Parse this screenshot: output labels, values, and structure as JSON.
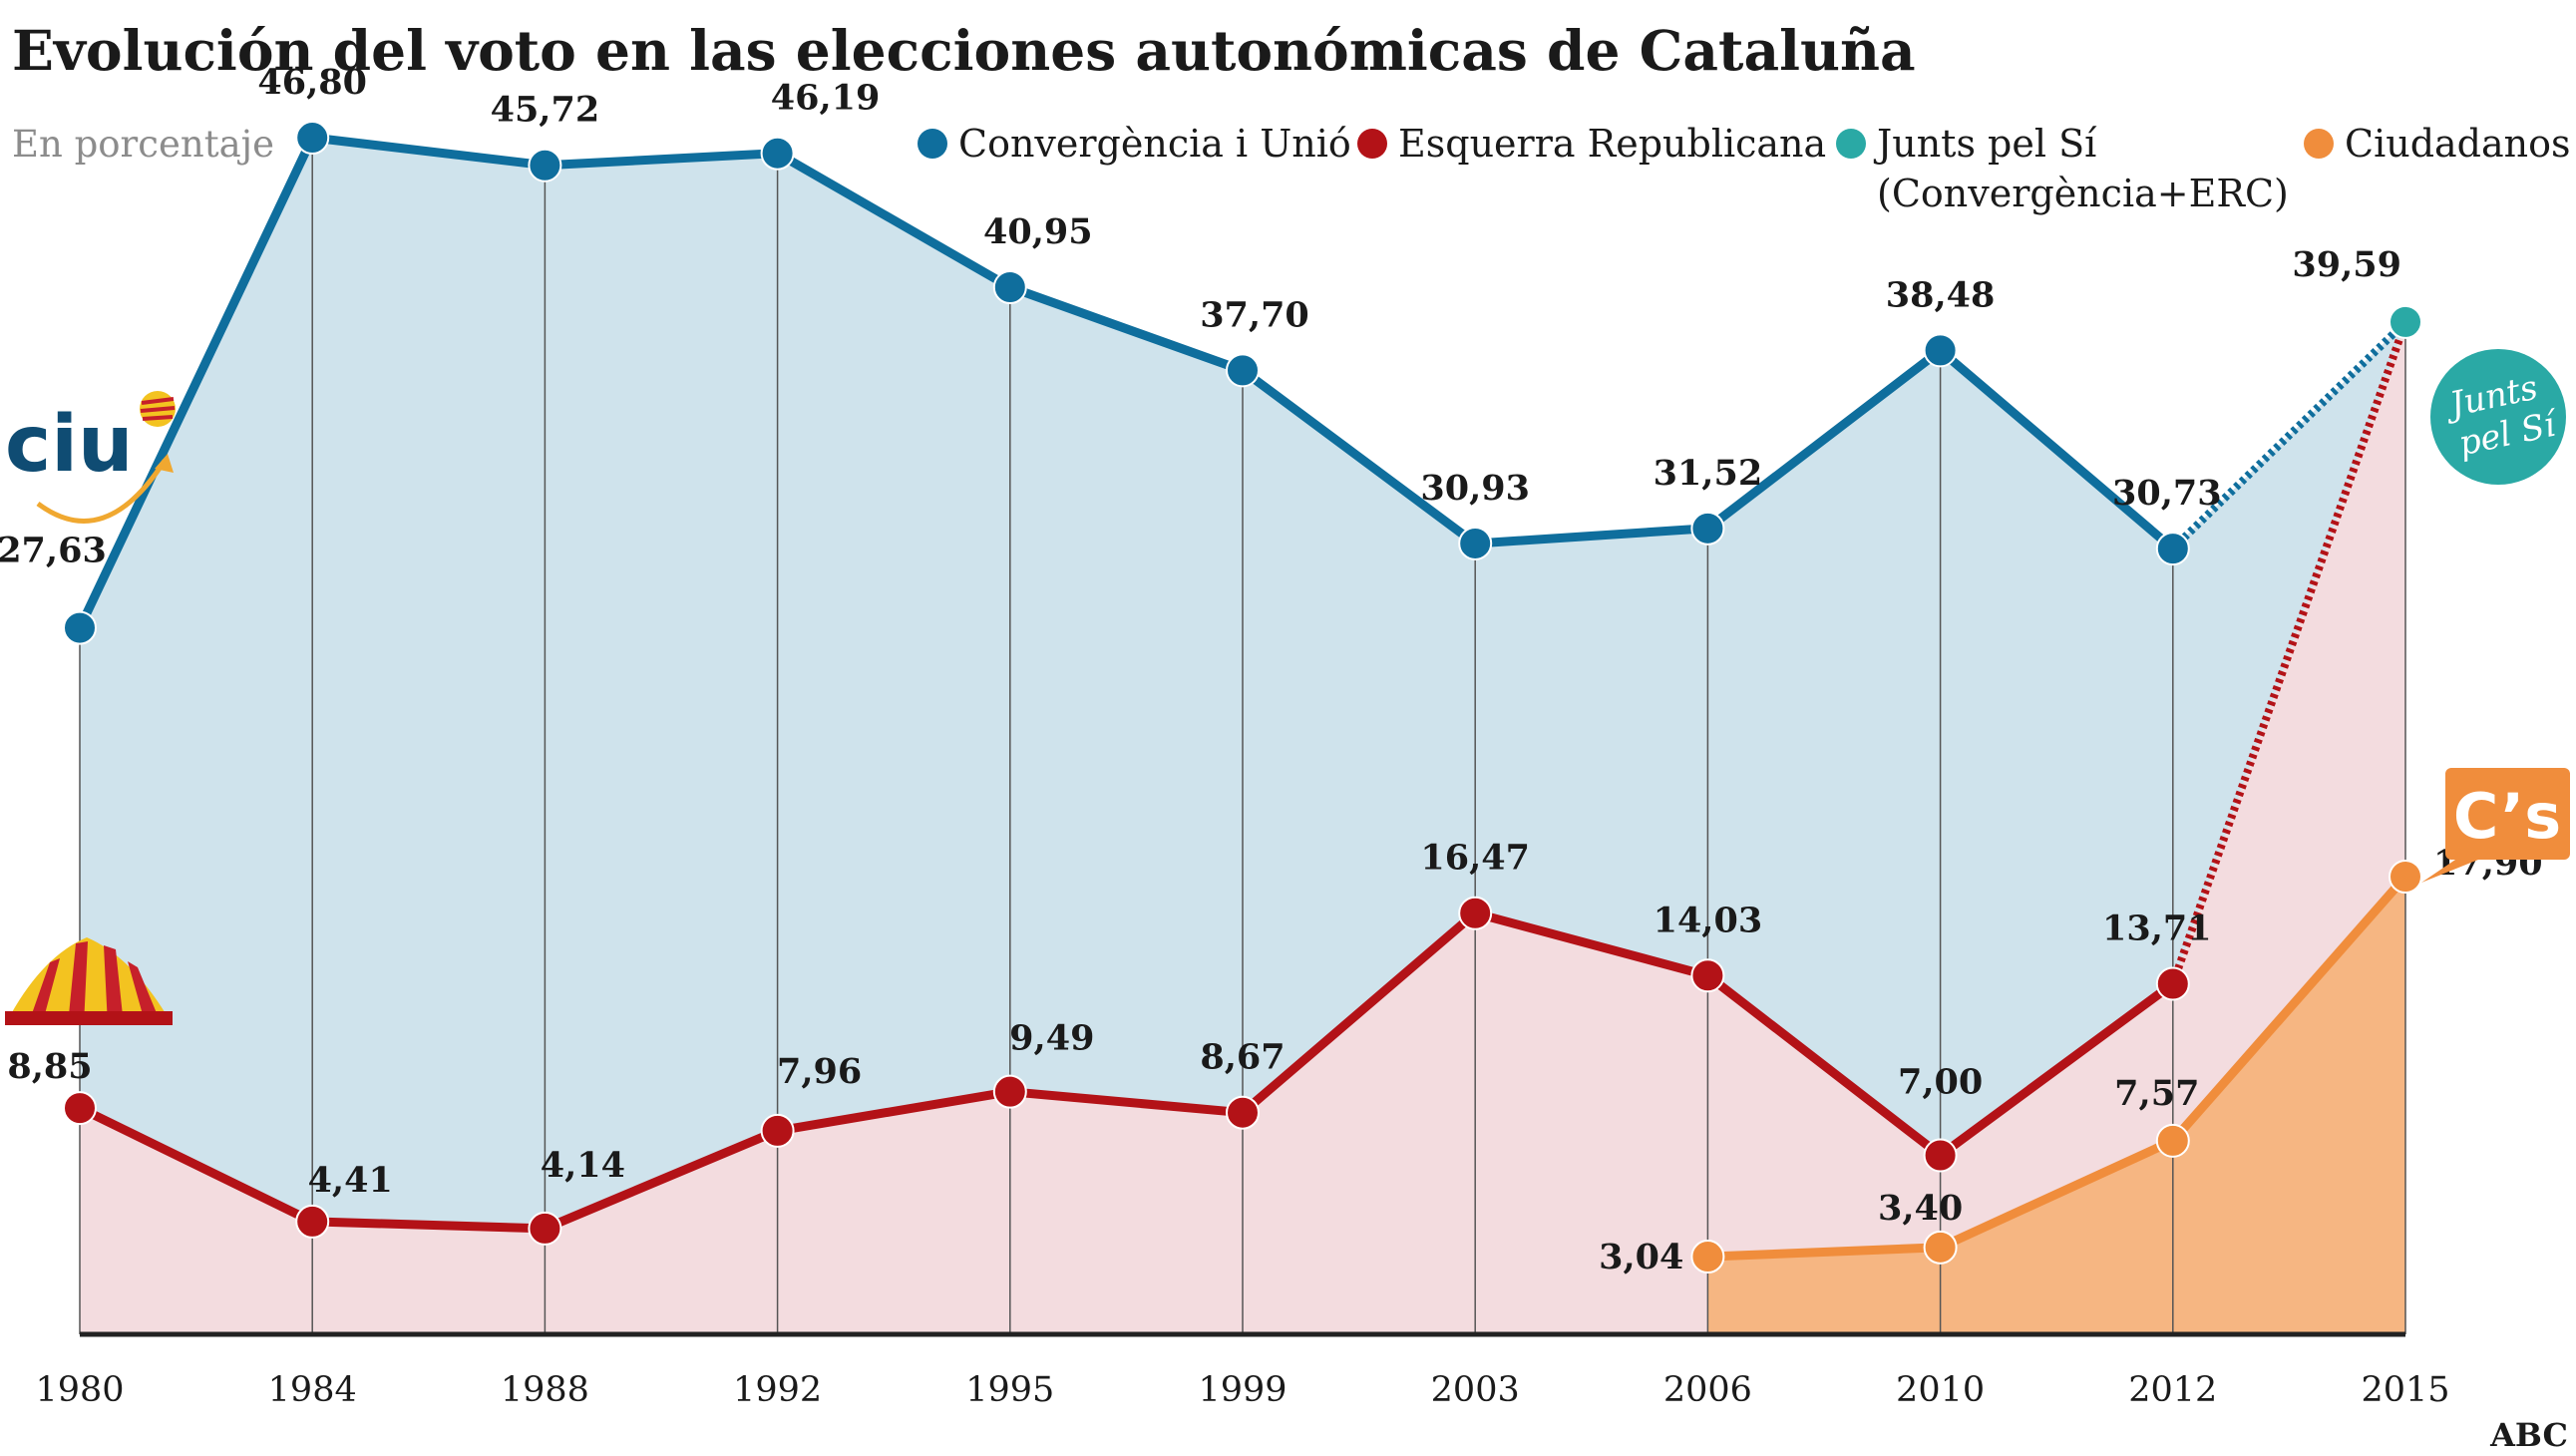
{
  "header": {
    "title": "Evolución del voto en las elecciones autonómicas de Cataluña",
    "subtitle": "En porcentaje",
    "source": "ABC"
  },
  "logos": {
    "ciu": "ciu",
    "junts": "Junts pel Sí",
    "cs": "C’s"
  },
  "colors": {
    "ciu": "#0f6e9d",
    "ciu_fill": "#cfe3ec",
    "erc": "#b31217",
    "erc_fill": "#f3dcdf",
    "junts": "#2aa9a5",
    "cs": "#f08d3c",
    "cs_fill": "#f6b682",
    "grid": "#555555",
    "axis": "#222222"
  },
  "chart_data": {
    "type": "line",
    "categories": [
      "1980",
      "1984",
      "1988",
      "1992",
      "1995",
      "1999",
      "2003",
      "2006",
      "2010",
      "2012",
      "2015"
    ],
    "ylim": [
      0,
      50
    ],
    "grid": "vertical lines at each year",
    "legend": "top-right",
    "title": "Evolución del voto en las elecciones autonómicas de Cataluña",
    "ylabel": "En porcentaje",
    "xlabel": "",
    "legend_entries": [
      {
        "key": "ciu",
        "label": "Convergència i Unió"
      },
      {
        "key": "erc",
        "label": "Esquerra Republicana"
      },
      {
        "key": "junts",
        "label": "Junts pel Sí",
        "label2": "(Convergència+ERC)"
      },
      {
        "key": "cs",
        "label": "Ciudadanos"
      }
    ],
    "series": [
      {
        "key": "ciu",
        "name": "Convergència i Unió",
        "x": [
          "1980",
          "1984",
          "1988",
          "1992",
          "1995",
          "1999",
          "2003",
          "2006",
          "2010",
          "2012"
        ],
        "values": [
          27.63,
          46.8,
          45.72,
          46.19,
          40.95,
          37.7,
          30.93,
          31.52,
          38.48,
          30.73
        ],
        "labels": [
          "27,63",
          "46,80",
          "45,72",
          "46,19",
          "40,95",
          "37,70",
          "30,93",
          "31,52",
          "38,48",
          "30,73"
        ]
      },
      {
        "key": "erc",
        "name": "Esquerra Republicana",
        "x": [
          "1980",
          "1984",
          "1988",
          "1992",
          "1995",
          "1999",
          "2003",
          "2006",
          "2010",
          "2012"
        ],
        "values": [
          8.85,
          4.41,
          4.14,
          7.96,
          9.49,
          8.67,
          16.47,
          14.03,
          7.0,
          13.71
        ],
        "labels": [
          "8,85",
          "4,41",
          "4,14",
          "7,96",
          "9,49",
          "8,67",
          "16,47",
          "14,03",
          "7,00",
          "13,71"
        ]
      },
      {
        "key": "junts",
        "name": "Junts pel Sí (Convergència+ERC)",
        "x": [
          "2015"
        ],
        "values": [
          39.59
        ],
        "labels": [
          "39,59"
        ]
      },
      {
        "key": "cs",
        "name": "Ciudadanos",
        "x": [
          "2006",
          "2010",
          "2012",
          "2015"
        ],
        "values": [
          3.04,
          3.4,
          7.57,
          17.9
        ],
        "labels": [
          "3,04",
          "3,40",
          "7,57",
          "17,90"
        ]
      }
    ]
  }
}
